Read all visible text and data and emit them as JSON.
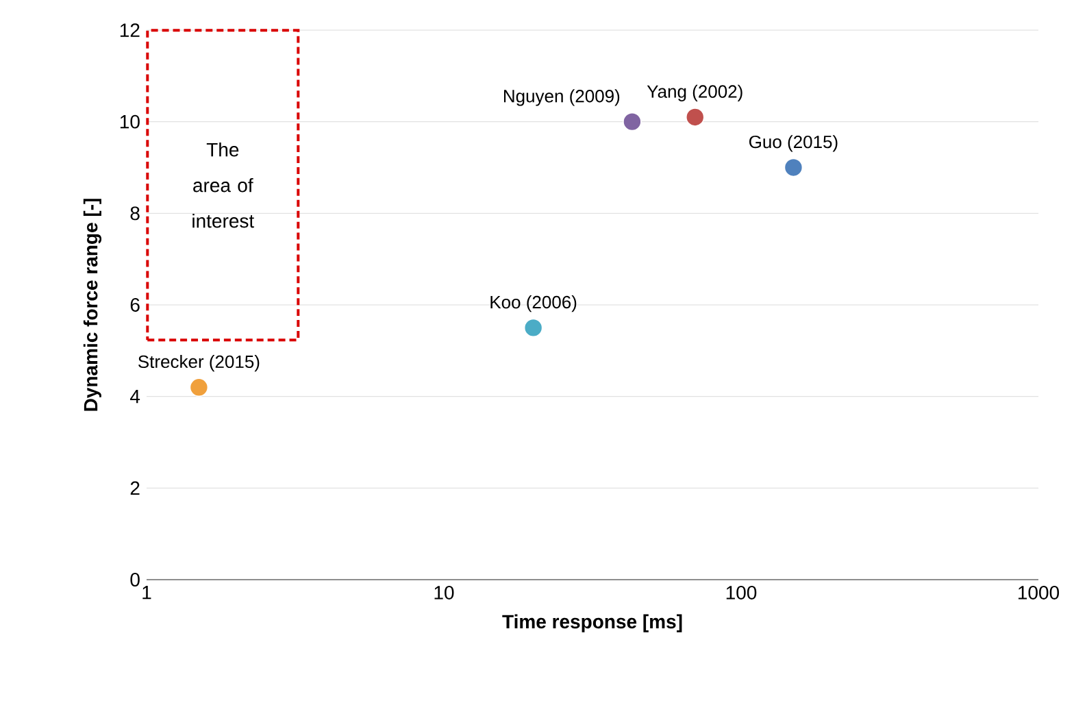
{
  "chart_data": {
    "type": "scatter",
    "xlabel": "Time response [ms]",
    "ylabel": "Dynamic force range [-]",
    "log": "x",
    "xlim": [
      1,
      1000
    ],
    "xticks": [
      1,
      10,
      100,
      1000
    ],
    "ylim": [
      0,
      12
    ],
    "yticks": [
      0,
      2,
      4,
      6,
      8,
      10,
      12
    ],
    "grid": "y",
    "series": [
      {
        "name": "Strecker (2015)",
        "color": "#f0a03c",
        "x": [
          1.5
        ],
        "values": [
          4.2
        ]
      },
      {
        "name": "Koo (2006)",
        "color": "#4bacc6",
        "x": [
          20
        ],
        "values": [
          5.5
        ]
      },
      {
        "name": "Nguyen (2009)",
        "color": "#8064a2",
        "x": [
          43
        ],
        "values": [
          10.0
        ]
      },
      {
        "name": "Yang (2002)",
        "color": "#c0504d",
        "x": [
          70
        ],
        "values": [
          10.1
        ]
      },
      {
        "name": "Guo (2015)",
        "color": "#4f81bd",
        "x": [
          150
        ],
        "values": [
          9.0
        ]
      }
    ],
    "annotations": [
      "The area of interest"
    ]
  }
}
